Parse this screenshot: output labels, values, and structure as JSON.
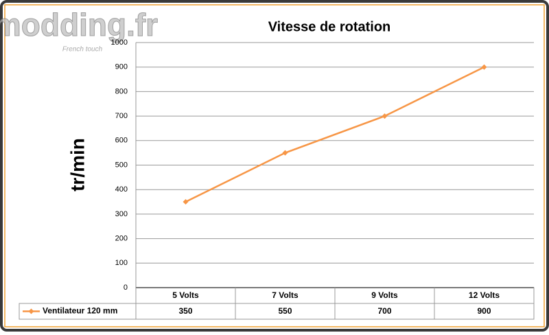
{
  "logo": {
    "text": "modding.fr",
    "tagline": "French touch"
  },
  "chart_data": {
    "type": "line",
    "title": "Vitesse de rotation",
    "y_label": "tr/min",
    "categories": [
      "5 Volts",
      "7 Volts",
      "9 Volts",
      "12 Volts"
    ],
    "series": [
      {
        "name": "Ventilateur 120 mm",
        "color": "#f79646",
        "values": [
          350,
          550,
          700,
          900
        ]
      }
    ],
    "ylim": [
      0,
      1000
    ],
    "yticks": [
      0,
      100,
      200,
      300,
      400,
      500,
      600,
      700,
      800,
      900,
      1000
    ],
    "grid": true
  }
}
